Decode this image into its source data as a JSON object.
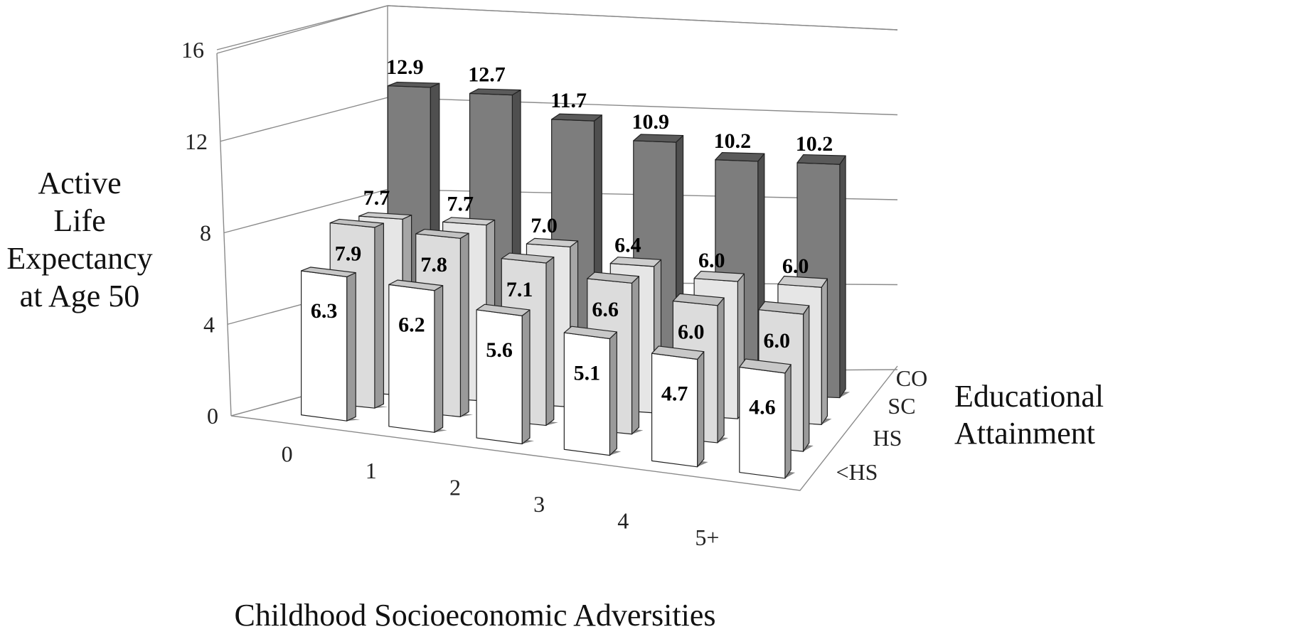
{
  "chart_data": {
    "type": "bar",
    "variant": "3d-grouped",
    "title": "",
    "ylabel": [
      "Active",
      "Life",
      "Expectancy",
      "at Age 50"
    ],
    "xlabel": "Childhood Socioeconomic Adversities",
    "zlabel": [
      "Educational",
      "Attainment"
    ],
    "categories": [
      "0",
      "1",
      "2",
      "3",
      "4",
      "5+"
    ],
    "yticks": [
      "0",
      "4",
      "8",
      "12",
      "16"
    ],
    "ylim": [
      0,
      16
    ],
    "grid": true,
    "series": [
      {
        "name": "<HS",
        "values": [
          6.3,
          6.2,
          5.6,
          5.1,
          4.7,
          4.6
        ],
        "color": "#ffffff"
      },
      {
        "name": "HS",
        "values": [
          7.9,
          7.8,
          7.1,
          6.6,
          6.0,
          6.0
        ],
        "color": "#dcdcdc"
      },
      {
        "name": "SC",
        "values": [
          7.7,
          7.7,
          7.0,
          6.4,
          6.0,
          6.0
        ],
        "color": "#e6e6e6"
      },
      {
        "name": "CO",
        "values": [
          12.9,
          12.7,
          11.7,
          10.9,
          10.2,
          10.2
        ],
        "color": "#7d7d7d"
      }
    ],
    "value_labels": [
      [
        "6.3",
        "6.2",
        "5.6",
        "5.1",
        "4.7",
        "4.6"
      ],
      [
        "7.9",
        "7.8",
        "7.1",
        "6.6",
        "6.0",
        "6.0"
      ],
      [
        "7.7",
        "7.7",
        "7.0",
        "6.4",
        "6.0",
        "6.0"
      ],
      [
        "12.9",
        "12.7",
        "11.7",
        "10.9",
        "10.2",
        "10.2"
      ]
    ]
  }
}
